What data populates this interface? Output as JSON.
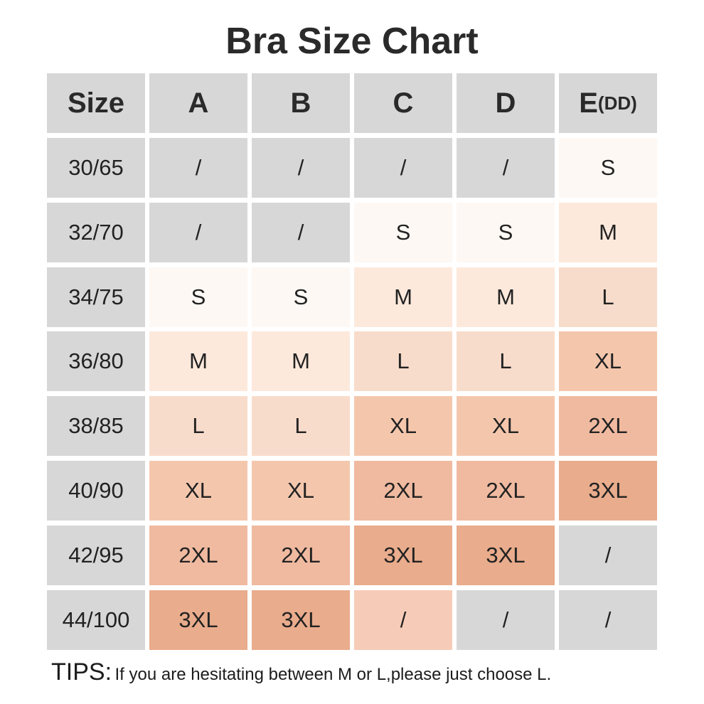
{
  "title": "Bra Size Chart",
  "table": {
    "header": [
      "Size",
      "A",
      "B",
      "C",
      "D",
      "E"
    ],
    "header_suffix": "(DD)",
    "rows": [
      [
        "30/65",
        "/",
        "/",
        "/",
        "/",
        "S"
      ],
      [
        "32/70",
        "/",
        "/",
        "S",
        "S",
        "M"
      ],
      [
        "34/75",
        "S",
        "S",
        "M",
        "M",
        "L"
      ],
      [
        "36/80",
        "M",
        "M",
        "L",
        "L",
        "XL"
      ],
      [
        "38/85",
        "L",
        "L",
        "XL",
        "XL",
        "2XL"
      ],
      [
        "40/90",
        "XL",
        "XL",
        "2XL",
        "2XL",
        "3XL"
      ],
      [
        "42/95",
        "2XL",
        "2XL",
        "3XL",
        "3XL",
        "/"
      ],
      [
        "44/100",
        "3XL",
        "3XL",
        "/",
        "/",
        "/"
      ]
    ]
  },
  "tips": {
    "label": "TIPS:",
    "text": "If you are hesitating between M or L,please just choose L."
  }
}
